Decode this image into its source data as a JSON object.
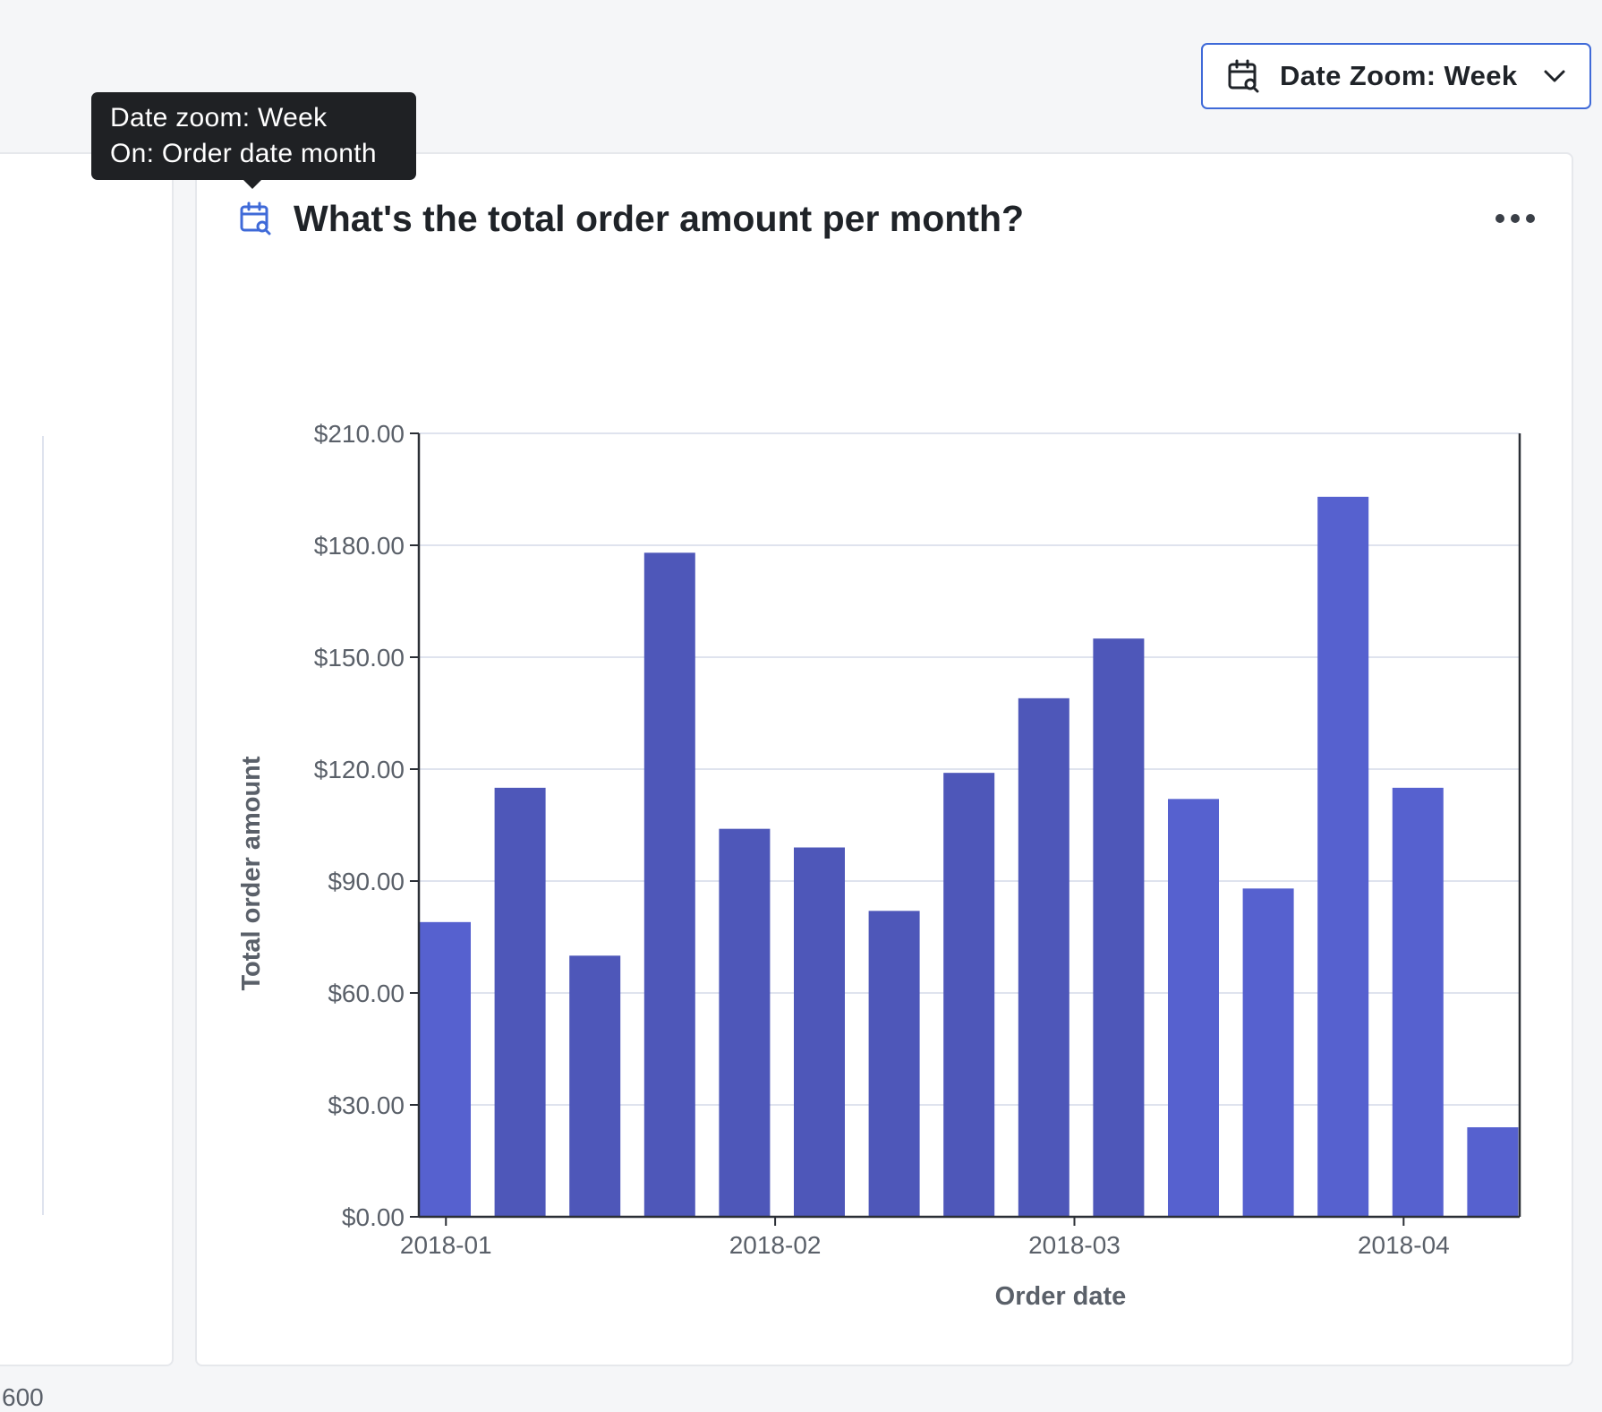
{
  "toolbar": {
    "date_zoom_label": "Date Zoom: Week",
    "date_zoom_icon": "calendar-search-icon",
    "chevron_icon": "chevron-down-icon"
  },
  "tooltip": {
    "line1": "Date zoom: Week",
    "line2": "On: Order date month"
  },
  "left_card": {
    "tick_label": "600"
  },
  "card": {
    "title": "What's the total order amount per month?",
    "title_icon": "calendar-search-icon",
    "menu_icon": "more-horizontal-icon"
  },
  "colors": {
    "accent": "#3f6ad8",
    "bar_light": "#5661cf",
    "bar_dark": "#4e57b9",
    "grid": "#dfe3ee",
    "axis": "#2b2f36"
  },
  "chart_data": {
    "type": "bar",
    "title": "What's the total order amount per month?",
    "xlabel": "Order date",
    "ylabel": "Total order amount",
    "ylim": [
      0,
      210
    ],
    "yticks": [
      0,
      30,
      60,
      90,
      120,
      150,
      180,
      210
    ],
    "ytick_labels": [
      "$0.00",
      "$30.00",
      "$60.00",
      "$90.00",
      "$120.00",
      "$150.00",
      "$180.00",
      "$210.00"
    ],
    "xtick_labels": [
      "2018-01",
      "2018-02",
      "2018-03",
      "2018-04"
    ],
    "xtick_bar_positions": [
      0.35,
      4.75,
      8.75,
      13.15
    ],
    "grid": true,
    "values": [
      79,
      115,
      70,
      178,
      104,
      99,
      82,
      119,
      139,
      155,
      112,
      88,
      193,
      115,
      24
    ],
    "shades": [
      "light",
      "dark",
      "dark",
      "dark",
      "dark",
      "dark",
      "dark",
      "dark",
      "dark",
      "dark",
      "light",
      "light",
      "light",
      "light",
      "light"
    ]
  }
}
